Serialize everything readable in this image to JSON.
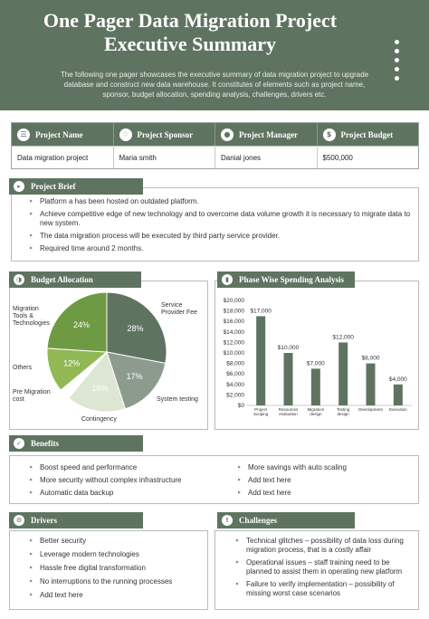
{
  "header": {
    "title_line1": "One Pager Data Migration Project",
    "title_line2": "Executive Summary",
    "subtitle": "The following one pager showcases the executive summary of data migration project to upgrade database and construct new data warehouse. It constitutes of elements such as project name, sponsor, budget allocation, spending analysis, challenges, drivers etc."
  },
  "project_table": {
    "headers": [
      "Project Name",
      "Project Sponsor",
      "Project Manager",
      "Project Budget"
    ],
    "icons": [
      "document-icon",
      "handshake-icon",
      "person-icon",
      "money-icon"
    ],
    "values": [
      "Data migration project",
      "Maria smith",
      "Danial jones",
      "$500,000"
    ]
  },
  "brief": {
    "title": "Project Brief",
    "items": [
      "Platform a has been hosted on outdated platform.",
      "Achieve competitive edge of new technology and to overcome data volume growth it is necessary to migrate data to new system.",
      "The data migration process will be executed by third party service provider.",
      "Required time around 2 months."
    ]
  },
  "budget": {
    "title": "Budget Allocation",
    "labels": {
      "migration_tools": "Migration Tools & Technologies",
      "service_provider": "Service Provider Fee",
      "others": "Others",
      "pre_migration": "Pre Migration cost",
      "contingency": "Contingency",
      "system_testing": "System testing"
    }
  },
  "spending": {
    "title": "Phase Wise Spending Analysis"
  },
  "chart_data": [
    {
      "type": "pie",
      "title": "Budget Allocation",
      "slices": [
        {
          "label": "Service Provider Fee",
          "value": 28,
          "display": "28%",
          "color": "#5f7361"
        },
        {
          "label": "System testing",
          "value": 17,
          "display": "17%",
          "color": "#8d9b8e"
        },
        {
          "label": "Contingency",
          "value": 16,
          "display": "16%",
          "color": "#dde6d3"
        },
        {
          "label": "Pre Migration cost",
          "value": 3,
          "display": "3%",
          "color": "#ffffff"
        },
        {
          "label": "Others",
          "value": 12,
          "display": "12%",
          "color": "#92b856"
        },
        {
          "label": "Migration Tools & Technologies",
          "value": 24,
          "display": "24%",
          "color": "#6f9a44"
        }
      ]
    },
    {
      "type": "bar",
      "title": "Phase Wise Spending Analysis",
      "categories": [
        "Project Scoping",
        "Resources evaluation",
        "Migration design",
        "Testing design",
        "Development",
        "Execution"
      ],
      "values": [
        17000,
        10000,
        7000,
        12000,
        8000,
        4000
      ],
      "value_labels": [
        "$17,000",
        "$10,000",
        "$7,000",
        "$12,000",
        "$8,000",
        "$4,000"
      ],
      "ytick_labels": [
        "$0",
        "$2,000",
        "$4,000",
        "$6,000",
        "$8,000",
        "$10,000",
        "$12,000",
        "$14,000",
        "$16,000",
        "$18,000",
        "$20,000"
      ],
      "ylim": [
        0,
        20000
      ],
      "color": "#5f7361"
    }
  ],
  "benefits": {
    "title": "Benefits",
    "left": [
      "Boost speed and performance",
      "More security without complex infrastructure",
      "Automatic data backup"
    ],
    "right": [
      "More savings with auto scaling",
      "Add text here",
      "Add text here"
    ]
  },
  "drivers": {
    "title": "Drivers",
    "items": [
      "Better security",
      "Leverage modern technologies",
      "Hassle free digital transformation",
      "No interruptions to the running processes",
      "Add text here"
    ]
  },
  "challenges": {
    "title": "Challenges",
    "items": [
      "Technical glitches – possibility of data loss during migration process, that is a costly affair",
      "Operational issues – staff training need to be planned to assist them in operating new platform",
      "Failure to verify implementation – possibility of missing worst case scenarios"
    ]
  },
  "colors": {
    "primary": "#5f7361",
    "accent_green": "#6f9a44"
  }
}
